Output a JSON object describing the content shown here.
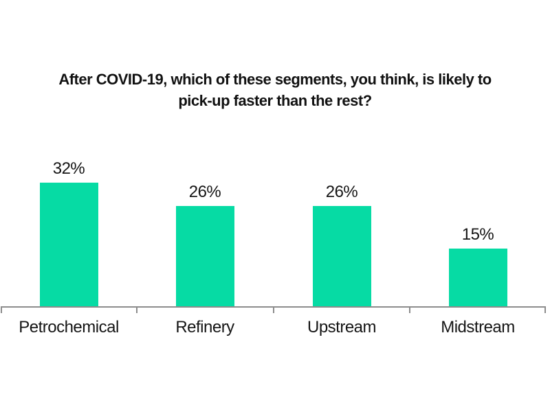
{
  "chart_data": {
    "type": "bar",
    "title": "After COVID-19, which of these segments, you think, is likely to pick-up faster than the rest?",
    "title_lines": [
      "After COVID-19, which of these segments, you think, is likely to",
      "pick-up faster than the rest?"
    ],
    "categories": [
      "Petrochemical",
      "Refinery",
      "Upstream",
      "Midstream"
    ],
    "values": [
      32,
      26,
      26,
      15
    ],
    "value_labels": [
      "32%",
      "26%",
      "26%",
      "15%"
    ],
    "xlabel": "",
    "ylabel": "",
    "grid": false,
    "legend": false,
    "bar_color": "#06DBA4",
    "axis_color": "#8C8C8C",
    "text_color": "#151515",
    "background_color": "#FFFFFF"
  }
}
